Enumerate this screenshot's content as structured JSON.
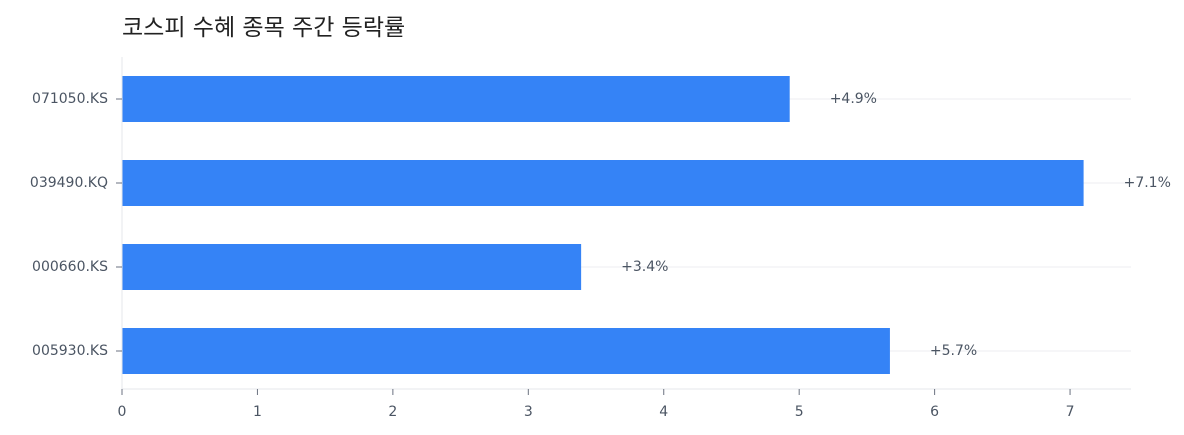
{
  "chart_data": {
    "type": "bar",
    "orientation": "horizontal",
    "title": "코스피 수혜 종목 주간 등락률",
    "xlabel": "",
    "ylabel": "",
    "categories": [
      "071050.KS",
      "039490.KQ",
      "000660.KS",
      "005930.KS"
    ],
    "values": [
      4.93,
      7.1,
      3.39,
      5.67
    ],
    "value_labels": [
      "+4.9%",
      "+7.1%",
      "+3.4%",
      "+5.7%"
    ],
    "xlim": [
      0,
      7.45
    ],
    "xticks": [
      "0",
      "1",
      "2",
      "3",
      "4",
      "5",
      "6",
      "7"
    ],
    "grid": "horizontal",
    "legend": "none"
  },
  "colors": {
    "bar": "#3583f6",
    "grid": "#f0f1f3",
    "axis": "#e5e7eb",
    "text": "#4b5563",
    "title": "#222222"
  }
}
